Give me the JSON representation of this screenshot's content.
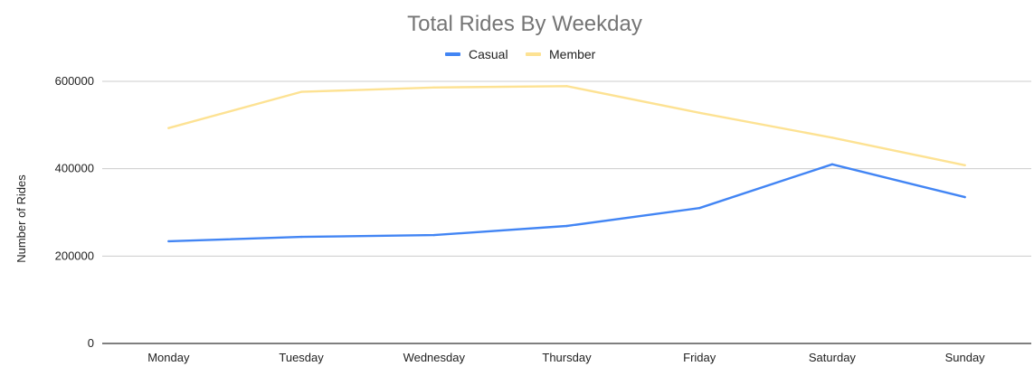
{
  "chart_data": {
    "type": "line",
    "title": "Total Rides By Weekday",
    "xlabel": "",
    "ylabel": "Number of Rides",
    "categories": [
      "Monday",
      "Tuesday",
      "Wednesday",
      "Thursday",
      "Friday",
      "Saturday",
      "Sunday"
    ],
    "series": [
      {
        "name": "Casual",
        "color": "#4285f4",
        "values": [
          234000,
          244000,
          248000,
          269000,
          310000,
          410000,
          335000
        ]
      },
      {
        "name": "Member",
        "color": "#fde293",
        "values": [
          493000,
          576000,
          586000,
          589000,
          528000,
          471000,
          408000
        ]
      }
    ],
    "yticks": [
      0,
      200000,
      400000,
      600000
    ],
    "ytick_labels": [
      "0",
      "200000",
      "400000",
      "600000"
    ],
    "ylim": [
      0,
      600000
    ],
    "grid": true,
    "legend_position": "top"
  }
}
